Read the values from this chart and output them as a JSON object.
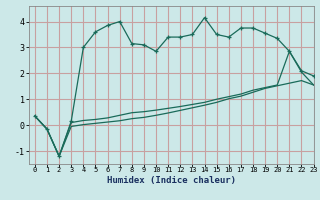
{
  "title": "",
  "xlabel": "Humidex (Indice chaleur)",
  "bg_color": "#cce8e8",
  "grid_color": "#c8a0a0",
  "line_color": "#1a6b5a",
  "xlim": [
    -0.5,
    23
  ],
  "ylim": [
    -1.5,
    4.6
  ],
  "xticks": [
    0,
    1,
    2,
    3,
    4,
    5,
    6,
    7,
    8,
    9,
    10,
    11,
    12,
    13,
    14,
    15,
    16,
    17,
    18,
    19,
    20,
    21,
    22,
    23
  ],
  "yticks": [
    -1,
    0,
    1,
    2,
    3,
    4
  ],
  "line1_x": [
    0,
    1,
    2,
    3,
    4,
    5,
    6,
    7,
    8,
    9,
    10,
    11,
    12,
    13,
    14,
    15,
    16,
    17,
    18,
    19,
    20,
    21,
    22,
    23
  ],
  "line1_y": [
    0.35,
    -0.15,
    -1.2,
    0.15,
    3.0,
    3.6,
    3.85,
    4.0,
    3.15,
    3.1,
    2.85,
    3.4,
    3.4,
    3.5,
    4.15,
    3.5,
    3.4,
    3.75,
    3.75,
    3.55,
    3.35,
    2.85,
    2.1,
    1.9
  ],
  "line2_x": [
    0,
    1,
    2,
    3,
    4,
    5,
    6,
    7,
    8,
    9,
    10,
    11,
    12,
    13,
    14,
    15,
    16,
    17,
    18,
    19,
    20,
    21,
    22,
    23
  ],
  "line2_y": [
    0.35,
    -0.15,
    -1.2,
    0.1,
    0.18,
    0.22,
    0.28,
    0.38,
    0.48,
    0.52,
    0.58,
    0.65,
    0.72,
    0.8,
    0.88,
    1.0,
    1.1,
    1.2,
    1.35,
    1.45,
    1.55,
    2.85,
    2.05,
    1.55
  ],
  "line3_x": [
    0,
    1,
    2,
    3,
    4,
    5,
    6,
    7,
    8,
    9,
    10,
    11,
    12,
    13,
    14,
    15,
    16,
    17,
    18,
    19,
    20,
    21,
    22,
    23
  ],
  "line3_y": [
    0.35,
    -0.15,
    -1.2,
    -0.05,
    0.02,
    0.07,
    0.12,
    0.17,
    0.25,
    0.3,
    0.38,
    0.47,
    0.57,
    0.67,
    0.77,
    0.88,
    1.02,
    1.12,
    1.27,
    1.42,
    1.52,
    1.62,
    1.72,
    1.55
  ]
}
